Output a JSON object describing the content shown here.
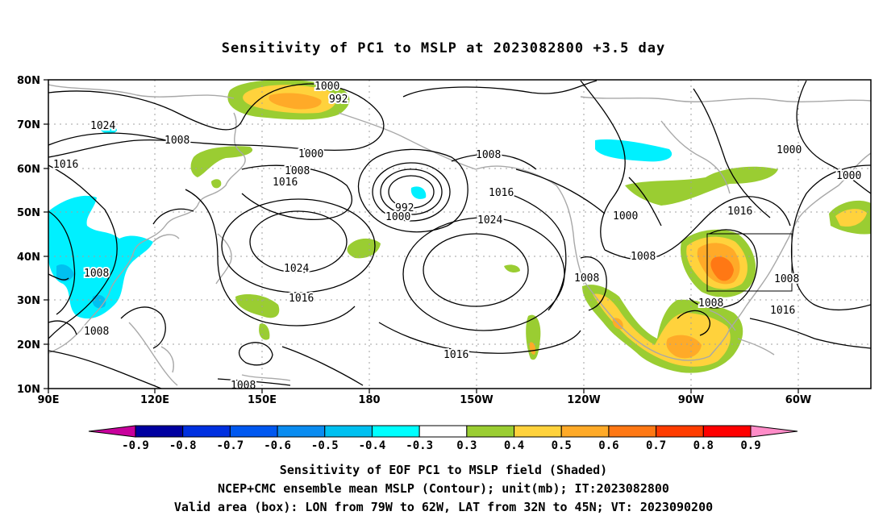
{
  "title": "Sensitivity of PC1 to MSLP at 2023082800 +3.5 day",
  "latitude_labels": [
    "80N",
    "70N",
    "60N",
    "50N",
    "40N",
    "30N",
    "20N",
    "10N"
  ],
  "longitude_labels": [
    "90E",
    "120E",
    "150E",
    "180",
    "150W",
    "120W",
    "90W",
    "60W"
  ],
  "contour_labels": {
    "c1000a": "1000",
    "c992a": "992",
    "c1024a": "1024",
    "c1008a": "1008",
    "c1016a": "1016",
    "c1000b": "1000",
    "c1008b": "1008",
    "c1016b": "1016",
    "c992b": "992",
    "c1000c": "1000",
    "c1008c": "1008",
    "c1016c": "1016",
    "c1024b": "1024",
    "c1024c": "1024",
    "c1016d": "1016",
    "c1008d": "1008",
    "c1008e": "1008",
    "c1008f": "1008",
    "c1016e": "1016",
    "c1000d": "1000",
    "c1016f": "1016",
    "c1008g": "1008",
    "c1008h": "1008",
    "c1008i": "1008",
    "c1016g": "1016",
    "c1000e": "1000",
    "c1000f": "1000",
    "c1008j": "1008"
  },
  "colorbar": {
    "labels": [
      "-0.9",
      "-0.8",
      "-0.7",
      "-0.6",
      "-0.5",
      "-0.4",
      "-0.3",
      "0.3",
      "0.4",
      "0.5",
      "0.6",
      "0.7",
      "0.8",
      "0.9"
    ],
    "colors": [
      "#0000a0",
      "#0030e0",
      "#0058f0",
      "#0a8cf0",
      "#00c0f0",
      "#00ffff",
      "#ffffff",
      "#9acd32",
      "#ffd23c",
      "#ffaa28",
      "#ff7814",
      "#ff3c00",
      "#ff0000"
    ],
    "under_color": "#c8009c",
    "over_color": "#ff8cc8"
  },
  "caption_line1": "Sensitivity of EOF PC1 to MSLP field (Shaded)",
  "caption_line2": "NCEP+CMC ensemble mean MSLP (Contour); unit(mb); IT:2023082800",
  "caption_line3": "Valid area (box): LON from 79W to 62W, LAT from 32N to 45N; VT: 2023090200",
  "valid_box": {
    "lon_min": -79,
    "lon_max": -62,
    "lat_min": 32,
    "lat_max": 45
  }
}
